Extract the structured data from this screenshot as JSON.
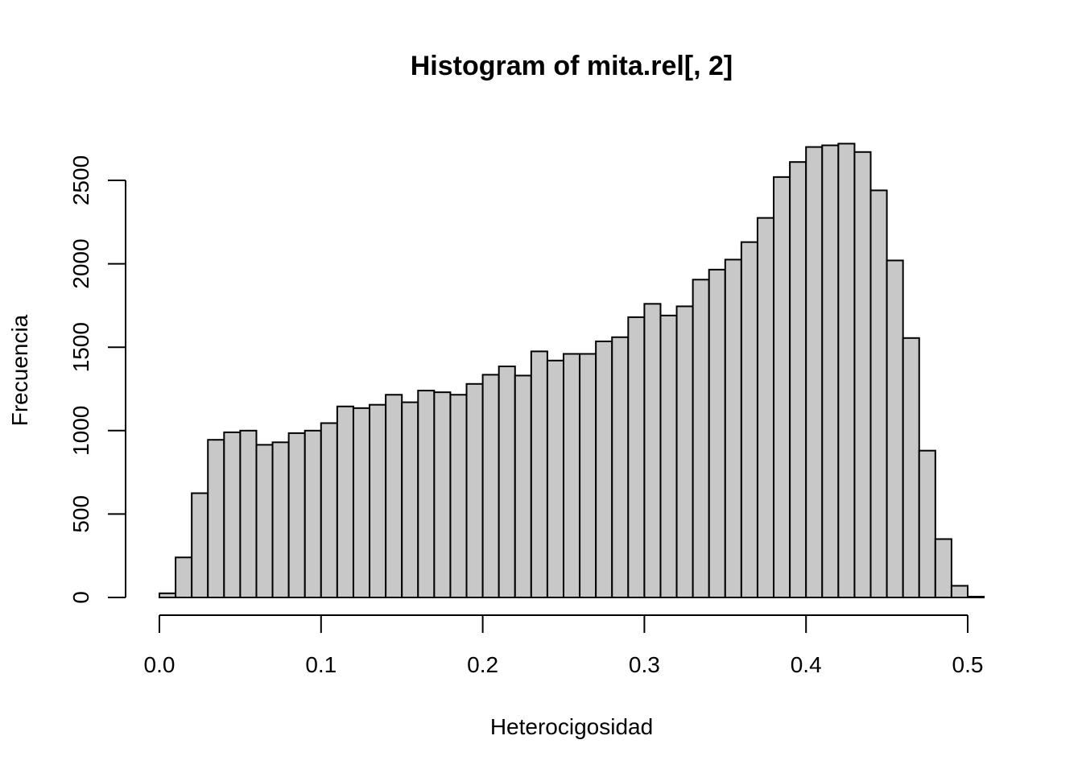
{
  "chart_data": {
    "type": "bar",
    "title": "Histogram of mita.rel[, 2]",
    "xlabel": "Heterocigosidad",
    "ylabel": "Frecuencia",
    "xlim": [
      0,
      0.51
    ],
    "ylim": [
      0,
      2720
    ],
    "bin_width": 0.01,
    "bin_start": 0.0,
    "xticks": [
      {
        "value": 0.0,
        "label": "0.0"
      },
      {
        "value": 0.1,
        "label": "0.1"
      },
      {
        "value": 0.2,
        "label": "0.2"
      },
      {
        "value": 0.3,
        "label": "0.3"
      },
      {
        "value": 0.4,
        "label": "0.4"
      },
      {
        "value": 0.5,
        "label": "0.5"
      }
    ],
    "yticks": [
      {
        "value": 0,
        "label": "0"
      },
      {
        "value": 500,
        "label": "500"
      },
      {
        "value": 1000,
        "label": "1000"
      },
      {
        "value": 1500,
        "label": "1500"
      },
      {
        "value": 2000,
        "label": "2000"
      },
      {
        "value": 2500,
        "label": "2500"
      }
    ],
    "values": [
      25,
      240,
      625,
      945,
      990,
      1000,
      915,
      930,
      985,
      1000,
      1045,
      1145,
      1135,
      1155,
      1215,
      1170,
      1240,
      1230,
      1215,
      1280,
      1335,
      1385,
      1330,
      1475,
      1420,
      1460,
      1460,
      1535,
      1560,
      1680,
      1760,
      1690,
      1745,
      1905,
      1965,
      2025,
      2130,
      2275,
      2520,
      2610,
      2700,
      2710,
      2720,
      2670,
      2440,
      2020,
      1555,
      880,
      350,
      70,
      5
    ],
    "bar_fill": "#c8c8c8",
    "bar_stroke": "#000000",
    "grid": false,
    "legend": "none"
  }
}
